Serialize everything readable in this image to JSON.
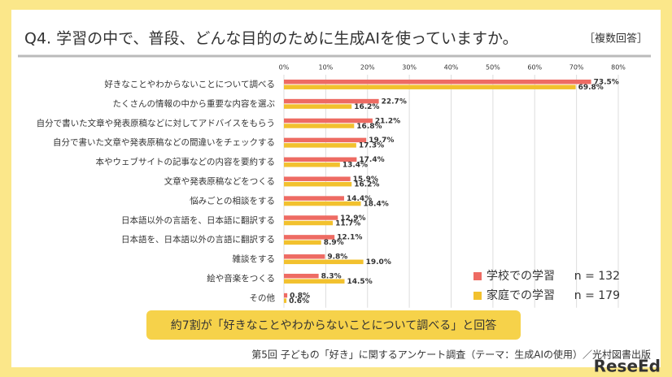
{
  "chart_data": {
    "type": "hbar",
    "title": "Q4. 学習の中で、普段、どんな目的のために生成AIを使っていますか。",
    "subtitle": "［複数回答］",
    "categories": [
      "好きなことやわからないことについて調べる",
      "たくさんの情報の中から重要な内容を選ぶ",
      "自分で書いた文章や発表原稿などに対してアドバイスをもらう",
      "自分で書いた文章や発表原稿などの間違いをチェックする",
      "本やウェブサイトの記事などの内容を要約する",
      "文章や発表原稿などをつくる",
      "悩みごとの相談をする",
      "日本語以外の言語を、日本語に翻訳する",
      "日本語を、日本語以外の言語に翻訳する",
      "雑談をする",
      "絵や音楽をつくる",
      "その他"
    ],
    "series": [
      {
        "name": "学校での学習",
        "sample": "n = 132",
        "color": "#ee6b63",
        "values": [
          73.5,
          22.7,
          21.2,
          19.7,
          17.4,
          15.9,
          14.4,
          12.9,
          12.1,
          9.8,
          8.3,
          0.8
        ],
        "value_labels": [
          "73.5%",
          "22.7%",
          "21.2%",
          "19.7%",
          "17.4%",
          "15.9%",
          "14.4%",
          "12.9%",
          "12.1%",
          "9.8%",
          "8.3%",
          "0.8%"
        ]
      },
      {
        "name": "家庭での学習",
        "sample": "n = 179",
        "color": "#f2c12e",
        "values": [
          69.8,
          16.2,
          16.8,
          17.3,
          13.4,
          16.2,
          18.4,
          11.7,
          8.9,
          19.0,
          14.5,
          0.6
        ],
        "value_labels": [
          "69.8%",
          "16.2%",
          "16.8%",
          "17.3%",
          "13.4%",
          "16.2%",
          "18.4%",
          "11.7%",
          "8.9%",
          "19.0%",
          "14.5%",
          "0.6%"
        ]
      }
    ],
    "xlim": [
      0,
      80
    ],
    "xticks": [
      {
        "value": 0,
        "label": "0%"
      },
      {
        "value": 10,
        "label": "10%"
      },
      {
        "value": 20,
        "label": "20%"
      },
      {
        "value": 30,
        "label": "30%"
      },
      {
        "value": 40,
        "label": "40%"
      },
      {
        "value": 50,
        "label": "50%"
      },
      {
        "value": 60,
        "label": "60%"
      },
      {
        "value": 70,
        "label": "70%"
      },
      {
        "value": 80,
        "label": "80%"
      }
    ],
    "grid": true,
    "annotation": "約7割が「好きなことやわからないことについて調べる」と回答",
    "source": "第5回 子どもの「好き」に関するアンケート調査（テーマ：生成AIの使用）／光村図書出版",
    "watermark": "ReseEd"
  }
}
